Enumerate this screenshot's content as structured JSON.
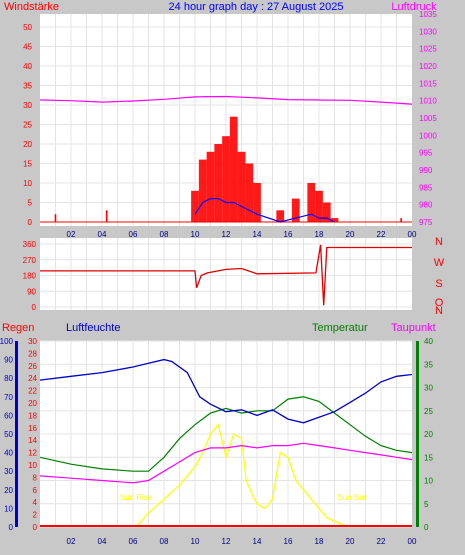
{
  "title": "24 hour graph day : 27 August 2025",
  "colors": {
    "wind": "#ff0000",
    "gust": "#ff0000",
    "wind_avg": "#0000ff",
    "wind_min": "#00a000",
    "pressure": "#ff00ff",
    "direction": "#e00000",
    "humidity": "#0000cc",
    "temperature": "#008000",
    "dewpoint": "#ff00ff",
    "solar": "#ffff00",
    "rain": "#ff0000",
    "sun_label": "#ffff00"
  },
  "x_ticks": [
    "02",
    "04",
    "06",
    "08",
    "10",
    "12",
    "14",
    "16",
    "18",
    "20",
    "22",
    "00"
  ],
  "chart_data": [
    {
      "type": "bar",
      "name": "wind",
      "left_label": "Windstärke",
      "right_label": "Luftdruck",
      "left_ticks": [
        "50",
        "45",
        "40",
        "35",
        "30",
        "25",
        "20",
        "15",
        "10",
        "5",
        "0"
      ],
      "right_ticks": [
        "1035",
        "1030",
        "1025",
        "1020",
        "1015",
        "1010",
        "1005",
        "1000",
        "995",
        "990",
        "985",
        "980",
        "975"
      ],
      "ylim_left": [
        0,
        50
      ],
      "ylim_right": [
        975,
        1035
      ],
      "x": [
        10.0,
        10.5,
        11.0,
        11.5,
        12.0,
        12.5,
        13.0,
        13.5,
        14.0,
        15.5,
        16.5,
        17.5,
        18.0,
        18.5,
        19.0
      ],
      "gust": [
        8,
        16,
        18,
        20,
        22,
        27,
        18,
        15,
        10,
        3,
        6,
        10,
        8,
        5,
        1
      ],
      "avg": [
        2,
        5,
        6,
        6,
        5,
        5,
        4,
        3,
        2,
        0,
        1,
        2,
        1,
        1,
        0
      ],
      "isolated_gusts": [
        {
          "x": 1.0,
          "v": 2
        },
        {
          "x": 4.3,
          "v": 3
        },
        {
          "x": 23.3,
          "v": 1
        }
      ],
      "pressure_x": [
        0,
        2,
        4,
        6,
        8,
        10,
        12,
        14,
        16,
        18,
        20,
        22,
        24
      ],
      "pressure": [
        1010.2,
        1010.0,
        1009.6,
        1009.9,
        1010.4,
        1011.1,
        1011.2,
        1010.8,
        1010.3,
        1010.2,
        1010.1,
        1009.6,
        1009.0
      ]
    },
    {
      "type": "line",
      "name": "wind_direction",
      "left_ticks": [
        "360",
        "270",
        "180",
        "90",
        "0"
      ],
      "right_ticks": [
        "N",
        "W",
        "S",
        "O",
        "N"
      ],
      "ylim": [
        0,
        360
      ],
      "x": [
        0,
        10.0,
        10.1,
        10.4,
        10.8,
        12.0,
        13.0,
        14.0,
        17.8,
        18.1,
        18.3,
        18.5,
        24
      ],
      "y": [
        206,
        206,
        110,
        180,
        195,
        215,
        220,
        190,
        195,
        355,
        10,
        340,
        340
      ]
    },
    {
      "type": "line",
      "name": "climate",
      "labels": {
        "rain": "Regen",
        "humidity": "Luftfeuchte",
        "temperature": "Temperatur",
        "dewpoint": "Taupunkt"
      },
      "humidity_ticks": [
        "100",
        "90",
        "80",
        "70",
        "60",
        "50",
        "40",
        "30",
        "20",
        "10",
        "0"
      ],
      "rain_ticks": [
        "30",
        "28",
        "26",
        "24",
        "22",
        "20",
        "18",
        "16",
        "14",
        "12",
        "10",
        "8",
        "6",
        "4",
        "2",
        "0"
      ],
      "temp_ticks": [
        "40",
        "35",
        "30",
        "25",
        "20",
        "15",
        "10",
        "5",
        "0"
      ],
      "ylim_humidity": [
        0,
        100
      ],
      "ylim_temp": [
        0,
        40
      ],
      "humidity": {
        "x": [
          0,
          2,
          4,
          6,
          7,
          8,
          8.5,
          9.5,
          10.3,
          11,
          12,
          13,
          14,
          15,
          16,
          17,
          18,
          19,
          20,
          21,
          22,
          23,
          24
        ],
        "y": [
          79,
          81,
          83,
          86,
          88,
          90,
          89,
          83,
          70,
          66,
          62,
          63,
          60,
          63,
          58,
          56,
          59,
          62,
          67,
          72,
          78,
          81,
          82
        ]
      },
      "temperature": {
        "x": [
          0,
          2,
          4,
          6,
          7,
          8,
          9,
          10,
          11,
          12,
          13,
          14,
          15,
          16,
          17,
          18,
          19,
          20,
          21,
          22,
          23,
          24
        ],
        "y": [
          15,
          13.5,
          12.5,
          12,
          12,
          15,
          19,
          22,
          24.5,
          25.5,
          24.5,
          25,
          25,
          27.5,
          28,
          27,
          24.5,
          22,
          19.5,
          17.5,
          16.5,
          16
        ]
      },
      "dewpoint": {
        "x": [
          0,
          2,
          4,
          6,
          7,
          8,
          9,
          10,
          11,
          12,
          13,
          14,
          15,
          16,
          17,
          18,
          19,
          20,
          21,
          22,
          23,
          24
        ],
        "y": [
          11,
          10.5,
          10,
          9.5,
          10,
          12,
          14,
          16,
          17,
          17,
          17.5,
          17,
          17.5,
          17.5,
          18,
          17.5,
          17,
          16.5,
          16,
          15.5,
          15,
          14.5
        ]
      },
      "solar": {
        "x": [
          6.2,
          7,
          8,
          9,
          9.5,
          10,
          10.5,
          11,
          11.5,
          12,
          12.5,
          13,
          13.3,
          13.7,
          14,
          14.5,
          15,
          15.5,
          16,
          16.5,
          17,
          17.5,
          18,
          18.5,
          19.5,
          20.1
        ],
        "y": [
          0,
          3,
          6,
          9,
          11,
          13,
          16,
          20,
          22,
          15,
          20,
          19,
          10,
          7,
          5,
          4,
          6,
          16,
          15,
          10,
          8,
          6,
          4,
          2,
          0.5,
          0
        ]
      },
      "rain": 0,
      "sun_rise_label": "Sun Rise",
      "sun_set_label": "Sun Set",
      "sun_rise_x": 6.2,
      "sun_set_x": 20.1
    }
  ]
}
